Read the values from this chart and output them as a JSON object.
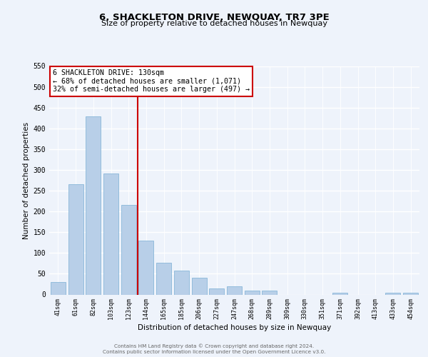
{
  "title": "6, SHACKLETON DRIVE, NEWQUAY, TR7 3PE",
  "subtitle": "Size of property relative to detached houses in Newquay",
  "xlabel": "Distribution of detached houses by size in Newquay",
  "ylabel": "Number of detached properties",
  "bar_labels": [
    "41sqm",
    "61sqm",
    "82sqm",
    "103sqm",
    "123sqm",
    "144sqm",
    "165sqm",
    "185sqm",
    "206sqm",
    "227sqm",
    "247sqm",
    "268sqm",
    "289sqm",
    "309sqm",
    "330sqm",
    "351sqm",
    "371sqm",
    "392sqm",
    "413sqm",
    "433sqm",
    "454sqm"
  ],
  "bar_values": [
    30,
    265,
    428,
    292,
    215,
    130,
    76,
    58,
    40,
    15,
    20,
    9,
    10,
    0,
    0,
    0,
    5,
    0,
    0,
    4,
    4
  ],
  "bar_color": "#b8cfe8",
  "bar_edge_color": "#7aafd4",
  "vline_x": 4.5,
  "vline_color": "#cc0000",
  "annotation_title": "6 SHACKLETON DRIVE: 130sqm",
  "annotation_line1": "← 68% of detached houses are smaller (1,071)",
  "annotation_line2": "32% of semi-detached houses are larger (497) →",
  "annotation_box_color": "#ffffff",
  "annotation_box_edge_color": "#cc0000",
  "ylim": [
    0,
    550
  ],
  "yticks": [
    0,
    50,
    100,
    150,
    200,
    250,
    300,
    350,
    400,
    450,
    500,
    550
  ],
  "footer_line1": "Contains HM Land Registry data © Crown copyright and database right 2024.",
  "footer_line2": "Contains public sector information licensed under the Open Government Licence v3.0.",
  "bg_color": "#eef3fb"
}
